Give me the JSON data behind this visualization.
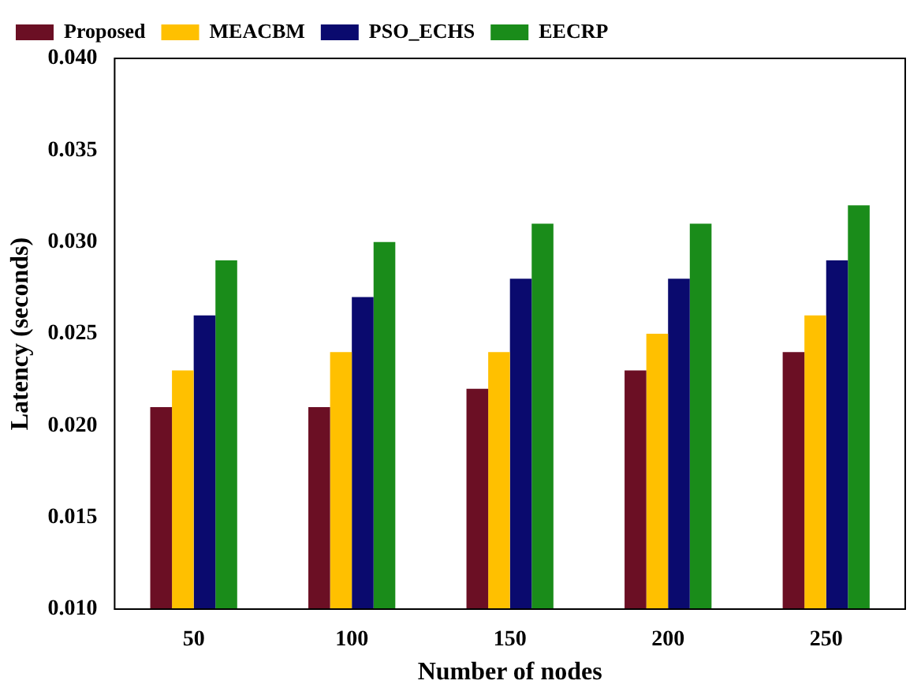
{
  "chart_data": {
    "type": "bar",
    "xlabel": "Number of nodes",
    "ylabel": "Latency (seconds)",
    "categories": [
      "50",
      "100",
      "150",
      "200",
      "250"
    ],
    "series": [
      {
        "name": "Proposed",
        "color": "#6b0f24",
        "values": [
          0.021,
          0.021,
          0.022,
          0.023,
          0.024
        ]
      },
      {
        "name": "MEACBM",
        "color": "#ffc000",
        "values": [
          0.023,
          0.024,
          0.024,
          0.025,
          0.026
        ]
      },
      {
        "name": "PSO_ECHS",
        "color": "#0a0a6e",
        "values": [
          0.026,
          0.027,
          0.028,
          0.028,
          0.029
        ]
      },
      {
        "name": "EECRP",
        "color": "#1a8c1a",
        "values": [
          0.029,
          0.03,
          0.031,
          0.031,
          0.032
        ]
      }
    ],
    "ylim": [
      0.01,
      0.04
    ],
    "yticks": [
      {
        "value": 0.01,
        "label": "0.010"
      },
      {
        "value": 0.015,
        "label": "0.015"
      },
      {
        "value": 0.02,
        "label": "0.020"
      },
      {
        "value": 0.025,
        "label": "0.025"
      },
      {
        "value": 0.03,
        "label": "0.030"
      },
      {
        "value": 0.035,
        "label": "0.035"
      },
      {
        "value": 0.04,
        "label": "0.040"
      }
    ],
    "grid": false,
    "legend": "top left"
  }
}
